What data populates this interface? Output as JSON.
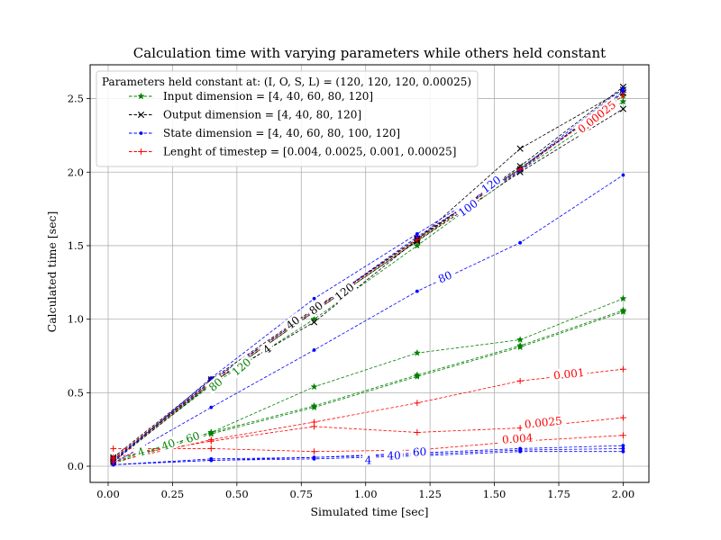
{
  "chart_data": {
    "type": "line",
    "title": "Calculation time with varying parameters while others held constant",
    "xlabel": "Simulated time [sec]",
    "ylabel": "Calculated time [sec]",
    "xlim": [
      -0.07,
      2.1
    ],
    "ylim": [
      -0.11,
      2.73
    ],
    "xticks": [
      0.0,
      0.25,
      0.5,
      0.75,
      1.0,
      1.25,
      1.5,
      1.75,
      2.0
    ],
    "xtick_labels": [
      "0.00",
      "0.25",
      "0.50",
      "0.75",
      "1.00",
      "1.25",
      "1.50",
      "1.75",
      "2.00"
    ],
    "yticks": [
      0.0,
      0.5,
      1.0,
      1.5,
      2.0,
      2.5
    ],
    "ytick_labels": [
      "0.0",
      "0.5",
      "1.0",
      "1.5",
      "2.0",
      "2.5"
    ],
    "grid": true,
    "legend": {
      "placement": "top-left",
      "title": "Parameters held constant at: (I, O, S, L) = (120, 120, 120, 0.00025)",
      "entries": [
        {
          "label": "Input dimension = [4, 40, 60, 80, 120]",
          "color": "#008000",
          "marker": "star"
        },
        {
          "label": "Output dimension = [4, 40, 80, 120]",
          "color": "#000000",
          "marker": "x"
        },
        {
          "label": "State dimension = [4, 40, 60, 80, 100, 120]",
          "color": "#0000ff",
          "marker": "dot"
        },
        {
          "label": "Lenght of timestep = [0.004, 0.0025, 0.001, 0.00025]",
          "color": "#ff0000",
          "marker": "plus"
        }
      ]
    },
    "x": [
      0.02,
      0.4,
      0.8,
      1.2,
      1.6,
      2.0
    ],
    "groups": [
      {
        "name": "Input dimension",
        "color": "#008000",
        "marker": "star",
        "series": [
          {
            "param": "4",
            "values": [
              0.02,
              0.22,
              0.4,
              0.61,
              0.81,
              1.05
            ]
          },
          {
            "param": "40",
            "values": [
              0.03,
              0.23,
              0.41,
              0.62,
              0.82,
              1.06
            ]
          },
          {
            "param": "60",
            "values": [
              0.04,
              0.23,
              0.54,
              0.77,
              0.86,
              1.14
            ]
          },
          {
            "param": "80",
            "values": [
              0.04,
              0.55,
              1.0,
              1.5,
              2.01,
              2.48
            ]
          },
          {
            "param": "120",
            "values": [
              0.05,
              0.56,
              1.05,
              1.53,
              2.03,
              2.52
            ]
          }
        ],
        "inline_labels": [
          {
            "text": "4",
            "x": 0.13,
            "y": 0.09,
            "angle": 20
          },
          {
            "text": "40",
            "x": 0.235,
            "y": 0.14,
            "angle": 20
          },
          {
            "text": "60",
            "x": 0.33,
            "y": 0.19,
            "angle": 20
          },
          {
            "text": "80",
            "x": 0.42,
            "y": 0.55,
            "angle": 40
          },
          {
            "text": "120",
            "x": 0.52,
            "y": 0.67,
            "angle": 40
          }
        ]
      },
      {
        "name": "Output dimension",
        "color": "#000000",
        "marker": "x",
        "series": [
          {
            "param": "4",
            "values": [
              0.03,
              0.56,
              1.05,
              1.53,
              2.0,
              2.43
            ]
          },
          {
            "param": "40",
            "values": [
              0.04,
              0.57,
              0.98,
              1.54,
              2.16,
              2.56
            ]
          },
          {
            "param": "80",
            "values": [
              0.05,
              0.58,
              1.06,
              1.55,
              2.02,
              2.54
            ]
          },
          {
            "param": "120",
            "values": [
              0.06,
              0.59,
              1.07,
              1.54,
              2.04,
              2.58
            ]
          }
        ],
        "inline_labels": [
          {
            "text": "4",
            "x": 0.62,
            "y": 0.79,
            "angle": 38
          },
          {
            "text": "40",
            "x": 0.72,
            "y": 0.97,
            "angle": 38
          },
          {
            "text": "80",
            "x": 0.81,
            "y": 1.07,
            "angle": 38
          },
          {
            "text": "120",
            "x": 0.92,
            "y": 1.18,
            "angle": 38
          }
        ]
      },
      {
        "name": "State dimension",
        "color": "#0000ff",
        "marker": "dot",
        "series": [
          {
            "param": "4",
            "values": [
              0.01,
              0.04,
              0.05,
              0.07,
              0.1,
              0.1
            ]
          },
          {
            "param": "40",
            "values": [
              0.01,
              0.04,
              0.06,
              0.08,
              0.11,
              0.12
            ]
          },
          {
            "param": "60",
            "values": [
              0.01,
              0.05,
              0.06,
              0.09,
              0.12,
              0.14
            ]
          },
          {
            "param": "80",
            "values": [
              0.02,
              0.4,
              0.79,
              1.19,
              1.52,
              1.98
            ]
          },
          {
            "param": "100",
            "values": [
              0.03,
              0.6,
              1.14,
              1.58,
              2.02,
              2.57
            ]
          },
          {
            "param": "120",
            "values": [
              0.04,
              0.58,
              1.06,
              1.56,
              2.01,
              2.55
            ]
          }
        ],
        "inline_labels": [
          {
            "text": "4",
            "x": 1.01,
            "y": 0.035,
            "angle": 0
          },
          {
            "text": "40",
            "x": 1.11,
            "y": 0.065,
            "angle": 2
          },
          {
            "text": "60",
            "x": 1.21,
            "y": 0.09,
            "angle": 2
          },
          {
            "text": "80",
            "x": 1.31,
            "y": 1.28,
            "angle": 24
          },
          {
            "text": "100",
            "x": 1.4,
            "y": 1.75,
            "angle": 36
          },
          {
            "text": "120",
            "x": 1.49,
            "y": 1.91,
            "angle": 36
          }
        ]
      },
      {
        "name": "Lenght of timestep",
        "color": "#ff0000",
        "marker": "plus",
        "series": [
          {
            "param": "0.004",
            "values": [
              0.12,
              0.12,
              0.1,
              0.11,
              0.17,
              0.21
            ]
          },
          {
            "param": "0.0025",
            "values": [
              0.06,
              0.17,
              0.27,
              0.23,
              0.26,
              0.33
            ]
          },
          {
            "param": "0.001",
            "values": [
              0.03,
              0.18,
              0.3,
              0.43,
              0.58,
              0.66
            ]
          },
          {
            "param": "0.00025",
            "values": [
              0.05,
              0.57,
              1.06,
              1.54,
              2.02,
              2.52
            ]
          }
        ],
        "inline_labels": [
          {
            "text": "0.004",
            "x": 1.59,
            "y": 0.18,
            "angle": 4
          },
          {
            "text": "0.0025",
            "x": 1.69,
            "y": 0.29,
            "angle": 6
          },
          {
            "text": "0.001",
            "x": 1.79,
            "y": 0.62,
            "angle": 6
          },
          {
            "text": "0.00025",
            "x": 1.9,
            "y": 2.37,
            "angle": 38
          }
        ]
      }
    ]
  }
}
